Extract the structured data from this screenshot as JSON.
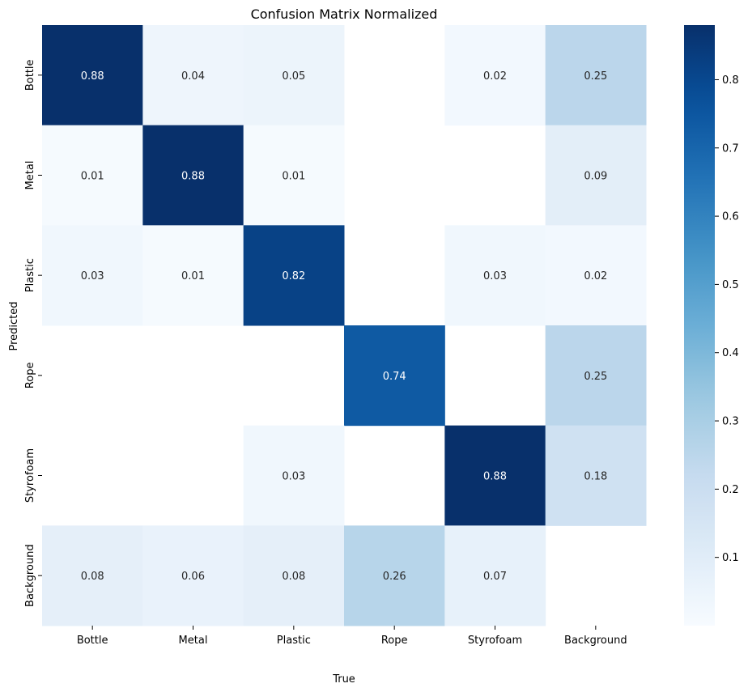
{
  "chart_data": {
    "type": "heatmap",
    "title": "Confusion Matrix Normalized",
    "xlabel": "True",
    "ylabel": "Predicted",
    "x_categories": [
      "Bottle",
      "Metal",
      "Plastic",
      "Rope",
      "Styrofoam",
      "Background"
    ],
    "y_categories": [
      "Bottle",
      "Metal",
      "Plastic",
      "Rope",
      "Styrofoam",
      "Background"
    ],
    "matrix": [
      [
        0.88,
        0.04,
        0.05,
        null,
        0.02,
        0.25
      ],
      [
        0.01,
        0.88,
        0.01,
        null,
        null,
        0.09
      ],
      [
        0.03,
        0.01,
        0.82,
        null,
        0.03,
        0.02
      ],
      [
        null,
        null,
        null,
        0.74,
        null,
        0.25
      ],
      [
        null,
        null,
        0.03,
        null,
        0.88,
        0.18
      ],
      [
        0.08,
        0.06,
        0.08,
        0.26,
        0.07,
        null
      ]
    ],
    "colorscale": "Blues",
    "vmin": 0.0,
    "vmax": 0.88,
    "colorbar_ticks": [
      "0.1",
      "0.2",
      "0.3",
      "0.4",
      "0.5",
      "0.6",
      "0.7",
      "0.8"
    ],
    "colorbar_tick_values": [
      0.1,
      0.2,
      0.3,
      0.4,
      0.5,
      0.6,
      0.7,
      0.8
    ],
    "annotations": true
  }
}
